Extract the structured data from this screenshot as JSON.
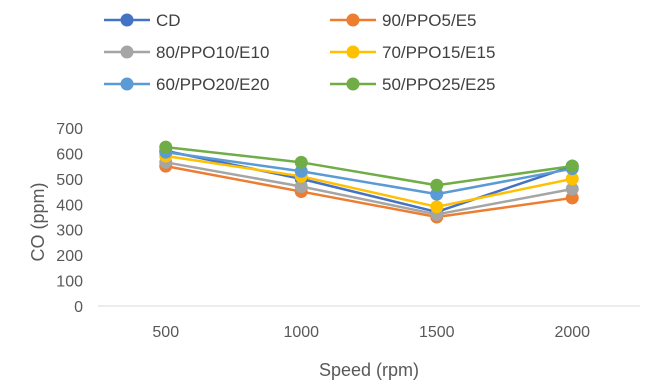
{
  "chart_data": {
    "type": "line",
    "xlabel": "Speed (rpm)",
    "ylabel": "CO (ppm)",
    "categories": [
      "500",
      "1000",
      "1500",
      "2000"
    ],
    "yticks": [
      "0",
      "100",
      "200",
      "300",
      "400",
      "500",
      "600",
      "700"
    ],
    "ylim": [
      0,
      700
    ],
    "grid": false,
    "legend_position": "top",
    "series": [
      {
        "name": "CD",
        "color": "#4472C4",
        "values": [
          610,
          500,
          370,
          550
        ]
      },
      {
        "name": "90/PPO5/E5",
        "color": "#ED7D31",
        "values": [
          550,
          450,
          350,
          425
        ]
      },
      {
        "name": "80/PPO10/E10",
        "color": "#A5A5A5",
        "values": [
          565,
          470,
          360,
          460
        ]
      },
      {
        "name": "70/PPO15/E15",
        "color": "#FFC000",
        "values": [
          590,
          510,
          390,
          500
        ]
      },
      {
        "name": "60/PPO20/E20",
        "color": "#5B9BD5",
        "values": [
          605,
          530,
          440,
          540
        ]
      },
      {
        "name": "50/PPO25/E25",
        "color": "#70AD47",
        "values": [
          625,
          565,
          475,
          550
        ]
      }
    ]
  }
}
